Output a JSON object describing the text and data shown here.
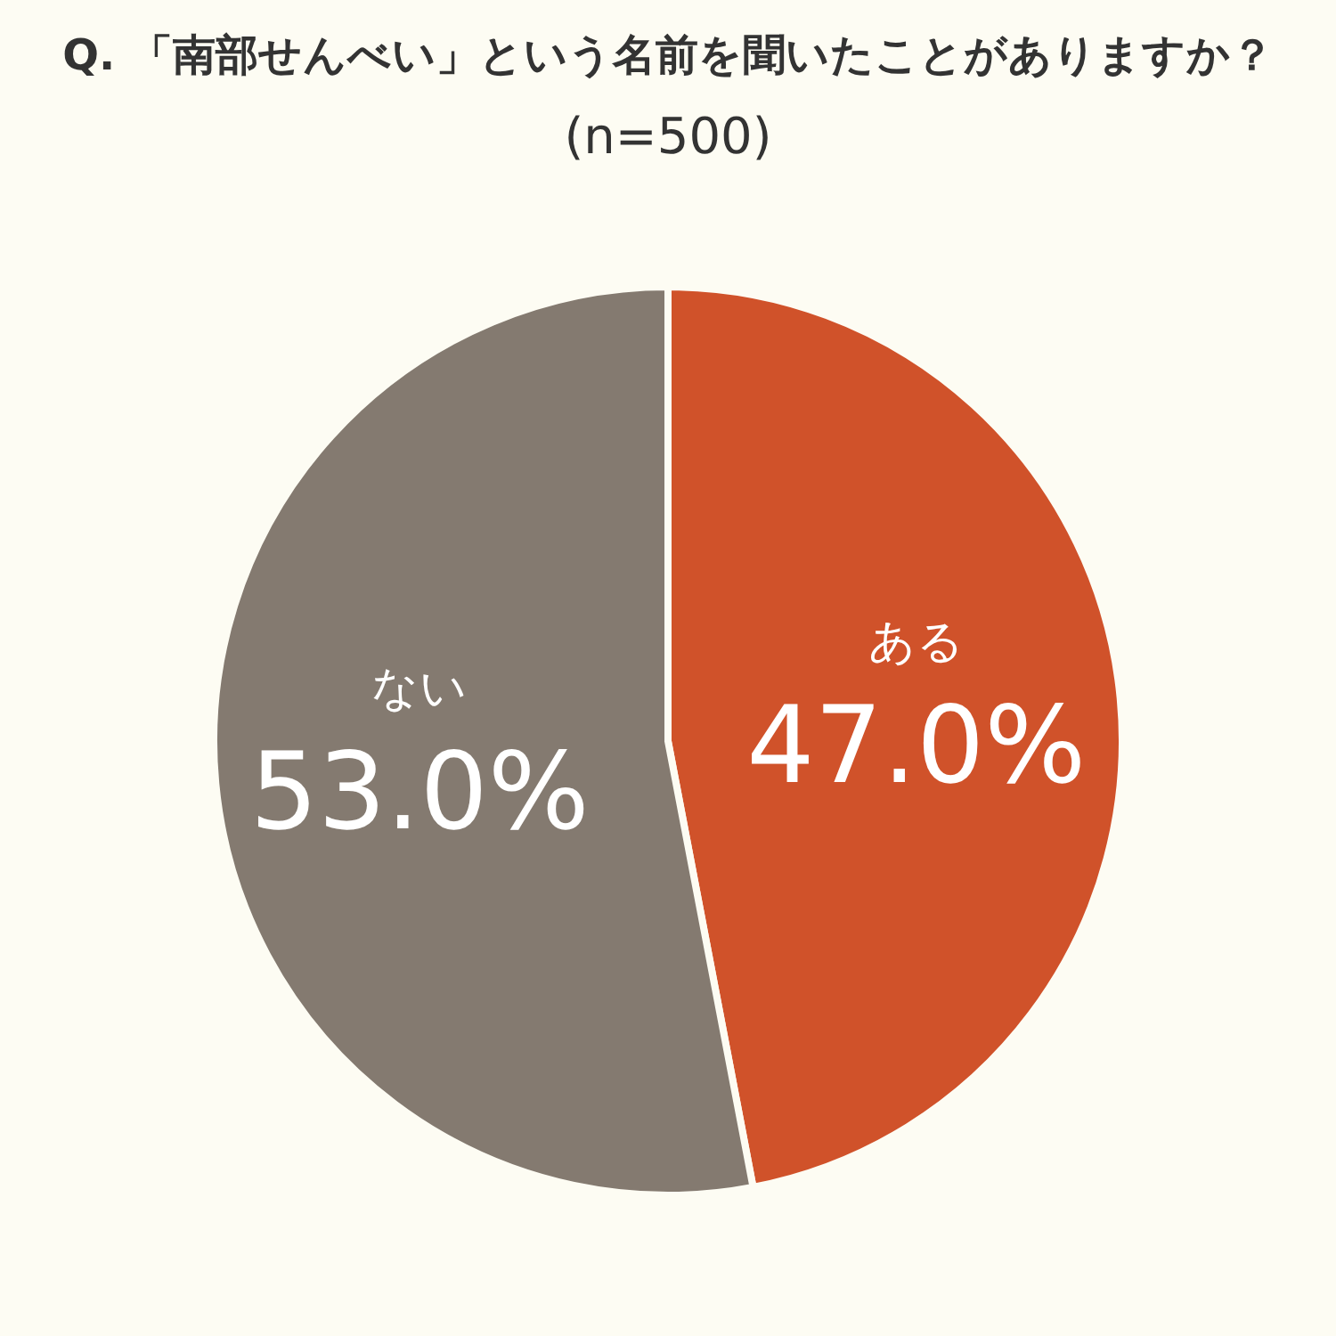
{
  "chart_data": {
    "type": "pie",
    "title": "Q. 「南部せんべい」という名前を聞いたことがありますか？",
    "subtitle": "(n=500)",
    "categories": [
      "ある",
      "ない"
    ],
    "values": [
      47.0,
      53.0
    ],
    "colors": [
      "#d0522a",
      "#847a70"
    ],
    "value_labels": [
      "47.0%",
      "53.0%"
    ],
    "legend": false
  }
}
